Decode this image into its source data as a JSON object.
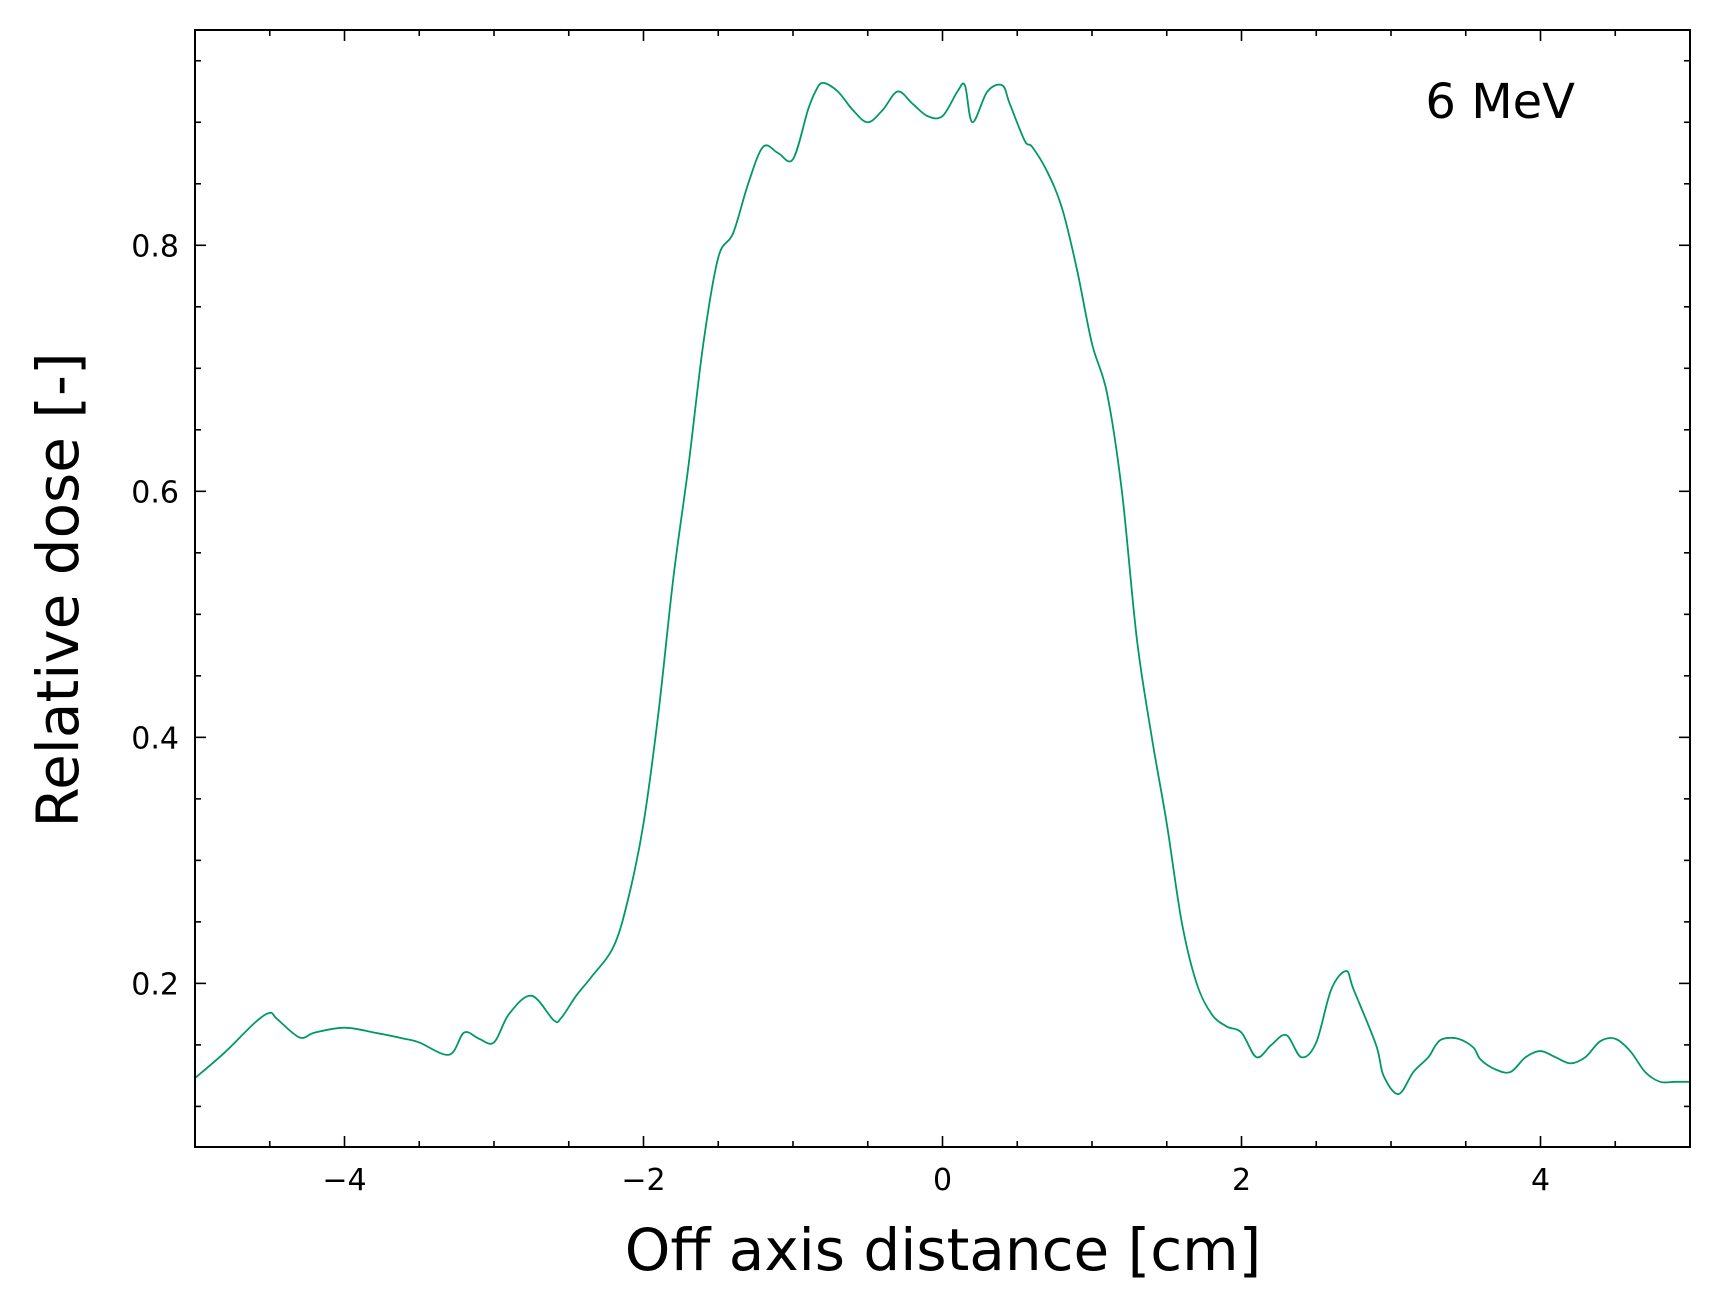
{
  "chart_data": {
    "type": "line",
    "title": "",
    "annotation": "6 MeV",
    "xlabel": "Off axis distance [cm]",
    "ylabel": "Relative dose [-]",
    "xlim": [
      -5,
      5
    ],
    "ylim": [
      0.067,
      0.975
    ],
    "grid": false,
    "legend": "none",
    "x_ticks": [
      -4,
      -2,
      0,
      2,
      4
    ],
    "x_tick_labels": [
      "−4",
      "−2",
      "0",
      "2",
      "4"
    ],
    "y_ticks": [
      0.2,
      0.4,
      0.6,
      0.8
    ],
    "y_tick_labels": [
      "0.2",
      "0.4",
      "0.6",
      "0.8"
    ],
    "x_minor_step": 0.5,
    "y_minor_step": 0.05,
    "series": [
      {
        "color": "#009966",
        "x": [
          -5.0,
          -4.8,
          -4.6,
          -4.5,
          -4.45,
          -4.3,
          -4.2,
          -4.0,
          -3.8,
          -3.6,
          -3.5,
          -3.3,
          -3.2,
          -3.1,
          -3.0,
          -2.9,
          -2.75,
          -2.6,
          -2.55,
          -2.45,
          -2.35,
          -2.2,
          -2.1,
          -2.0,
          -1.9,
          -1.8,
          -1.7,
          -1.6,
          -1.5,
          -1.4,
          -1.3,
          -1.2,
          -1.1,
          -1.0,
          -0.9,
          -0.85,
          -0.8,
          -0.7,
          -0.6,
          -0.5,
          -0.4,
          -0.3,
          -0.2,
          -0.1,
          0.0,
          0.1,
          0.15,
          0.2,
          0.3,
          0.4,
          0.45,
          0.55,
          0.6,
          0.7,
          0.8,
          0.9,
          1.0,
          1.1,
          1.2,
          1.3,
          1.4,
          1.5,
          1.6,
          1.7,
          1.8,
          1.9,
          2.0,
          2.1,
          2.2,
          2.3,
          2.4,
          2.5,
          2.6,
          2.7,
          2.75,
          2.9,
          2.95,
          3.05,
          3.15,
          3.25,
          3.3,
          3.35,
          3.45,
          3.55,
          3.6,
          3.7,
          3.8,
          3.9,
          4.0,
          4.1,
          4.2,
          4.3,
          4.4,
          4.5,
          4.6,
          4.7,
          4.8,
          4.9,
          5.0
        ],
        "y": [
          0.123,
          0.144,
          0.168,
          0.176,
          0.171,
          0.156,
          0.16,
          0.164,
          0.16,
          0.155,
          0.152,
          0.142,
          0.16,
          0.155,
          0.152,
          0.175,
          0.19,
          0.17,
          0.172,
          0.19,
          0.205,
          0.23,
          0.27,
          0.33,
          0.42,
          0.53,
          0.62,
          0.72,
          0.79,
          0.81,
          0.85,
          0.88,
          0.875,
          0.87,
          0.91,
          0.925,
          0.932,
          0.925,
          0.91,
          0.9,
          0.91,
          0.925,
          0.915,
          0.905,
          0.905,
          0.925,
          0.93,
          0.9,
          0.925,
          0.93,
          0.915,
          0.885,
          0.88,
          0.86,
          0.83,
          0.78,
          0.72,
          0.68,
          0.6,
          0.48,
          0.4,
          0.33,
          0.25,
          0.2,
          0.175,
          0.165,
          0.16,
          0.14,
          0.15,
          0.158,
          0.14,
          0.152,
          0.195,
          0.21,
          0.195,
          0.15,
          0.125,
          0.11,
          0.128,
          0.14,
          0.15,
          0.155,
          0.155,
          0.148,
          0.138,
          0.13,
          0.128,
          0.14,
          0.145,
          0.14,
          0.135,
          0.14,
          0.153,
          0.155,
          0.145,
          0.128,
          0.12,
          0.12,
          0.12
        ]
      }
    ]
  }
}
